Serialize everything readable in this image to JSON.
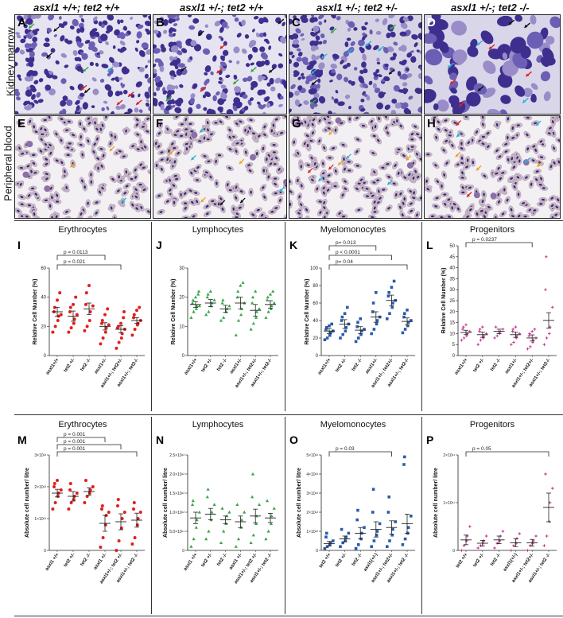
{
  "headers": [
    "asxl1 +/+; tet2 +/+",
    "asxl1 +/-; tet2 +/+",
    "asxl1 +/-; tet2 +/-",
    "asxl1 +/-; tet2 -/-"
  ],
  "row_labels": [
    "Kidney marrow",
    "Peripheral blood"
  ],
  "photo_panels": {
    "top": [
      "A",
      "B",
      "C",
      "D"
    ],
    "bottom": [
      "E",
      "F",
      "G",
      "H"
    ]
  },
  "colors": {
    "red": "#e0201c",
    "green": "#3aa64a",
    "blue": "#2a5ca8",
    "pink": "#c02a88",
    "stain_purple": "#4b3ea0",
    "rbc": "#c8b7c8"
  },
  "chart_data": [
    {
      "panel": "I",
      "type": "scatter",
      "title": "Erythrocytes",
      "color": "#e0201c",
      "marker": "circle",
      "categories": [
        "asxl1+/+",
        "tet2 +/-",
        "tet2 -/-",
        "asxl1+/-",
        "asxl1+/-; tet2+/-",
        "asxl1+/-; tet2-/-"
      ],
      "ylabel": "Relative Cell Number (%)",
      "ylim": [
        0,
        60
      ],
      "yticks": [
        0,
        20,
        40,
        60
      ],
      "means": [
        30,
        27,
        32,
        20,
        18,
        24
      ],
      "sems": [
        3,
        3.5,
        4,
        2.5,
        2.5,
        2
      ],
      "points": [
        [
          16,
          20,
          24,
          27,
          28,
          30,
          33,
          38,
          43
        ],
        [
          16,
          19,
          22,
          25,
          28,
          30,
          33,
          35,
          40
        ],
        [
          17,
          20,
          24,
          30,
          34,
          35,
          43,
          48
        ],
        [
          8,
          12,
          16,
          19,
          21,
          22,
          24,
          28,
          32
        ],
        [
          5,
          9,
          12,
          15,
          18,
          19,
          20,
          22,
          26,
          30
        ],
        [
          14,
          18,
          21,
          22,
          24,
          26,
          28,
          31,
          33
        ]
      ],
      "brackets": [
        {
          "from": 0,
          "to": 4,
          "label": "p = 0.021"
        },
        {
          "from": 0,
          "to": 3,
          "label": "p = 0.0113"
        }
      ]
    },
    {
      "panel": "J",
      "type": "scatter",
      "title": "Lymphocytes",
      "color": "#3aa64a",
      "marker": "triangle",
      "categories": [
        "asxl1+/+",
        "tet2 +/-",
        "tet2 -/-",
        "asxl1+/-",
        "asxl1+/-; tet2+/-",
        "asxl1+/-; tet2-/-"
      ],
      "ylabel": "Relative Cell Number (%)",
      "ylim": [
        0,
        30
      ],
      "yticks": [
        0,
        10,
        20,
        30
      ],
      "means": [
        17.5,
        18,
        16,
        18,
        15.5,
        17.5
      ],
      "sems": [
        1,
        1.2,
        1.2,
        2,
        2,
        1.3
      ],
      "points": [
        [
          13,
          15,
          16,
          17,
          17,
          18,
          19,
          20,
          21,
          22
        ],
        [
          14,
          15,
          17,
          18,
          19,
          20,
          21,
          22
        ],
        [
          12,
          13,
          15,
          16,
          17,
          18,
          19
        ],
        [
          7,
          12,
          14,
          16,
          18,
          20,
          22,
          24,
          25
        ],
        [
          9,
          11,
          13,
          15,
          16,
          18,
          20,
          22
        ],
        [
          13,
          15,
          16,
          17,
          18,
          19,
          20,
          21,
          22
        ]
      ],
      "brackets": []
    },
    {
      "panel": "K",
      "type": "scatter",
      "title": "Myelomonocytes",
      "color": "#2a5ca8",
      "marker": "square",
      "categories": [
        "asxl1+/+",
        "tet2 +/-",
        "tet2 -/-",
        "asxl1+/-",
        "asxl1+/-; tet2+/-",
        "asxl1+/-; tet2-/-"
      ],
      "ylabel": "Relative Cell Number (%)",
      "ylim": [
        0,
        100
      ],
      "yticks": [
        0,
        20,
        40,
        60,
        80,
        100
      ],
      "means": [
        28,
        36,
        29,
        44,
        63,
        39
      ],
      "sems": [
        3,
        5,
        4,
        6,
        6,
        4
      ],
      "points": [
        [
          18,
          20,
          23,
          26,
          28,
          30,
          32,
          34,
          36
        ],
        [
          20,
          24,
          28,
          32,
          36,
          40,
          44,
          48,
          55
        ],
        [
          16,
          20,
          24,
          28,
          30,
          33,
          38,
          42
        ],
        [
          25,
          30,
          36,
          40,
          44,
          50,
          60,
          72
        ],
        [
          42,
          48,
          55,
          60,
          63,
          68,
          72,
          78,
          85
        ],
        [
          26,
          30,
          34,
          38,
          40,
          44,
          48,
          52
        ]
      ],
      "brackets": [
        {
          "from": 0,
          "to": 5,
          "label": "p= 0.04"
        },
        {
          "from": 0,
          "to": 4,
          "label": "p < 0.0001"
        },
        {
          "from": 0,
          "to": 3,
          "label": "p= 0.013"
        }
      ]
    },
    {
      "panel": "L",
      "type": "scatter",
      "title": "Progenitors",
      "color": "#c02a88",
      "marker": "plus",
      "categories": [
        "asxl1+/+",
        "tet2 +/-",
        "tet2 -/-",
        "asxl1+/-",
        "asxl1+/-; tet2+/-",
        "asxl1+/-; tet2-/-"
      ],
      "ylabel": "Relative Cell Number (%)",
      "ylim": [
        0,
        50
      ],
      "yticks": [
        0,
        5,
        10,
        15,
        20,
        25,
        30,
        35,
        40,
        45,
        50
      ],
      "means": [
        10.5,
        9.5,
        11,
        9.5,
        8,
        16
      ],
      "sems": [
        1,
        1.2,
        1,
        1.2,
        1.4,
        3.5
      ],
      "points": [
        [
          7,
          8,
          9,
          10,
          11,
          12,
          13,
          14
        ],
        [
          5,
          7,
          8,
          9,
          10,
          11,
          12,
          13
        ],
        [
          8,
          9,
          10,
          11,
          12,
          13
        ],
        [
          5,
          6,
          8,
          9,
          10,
          11,
          12,
          13
        ],
        [
          3,
          4,
          6,
          7,
          8,
          9,
          10,
          11,
          12
        ],
        [
          5,
          8,
          10,
          13,
          22,
          30,
          45
        ]
      ],
      "brackets": [
        {
          "from": 0,
          "to": 4,
          "label": "p = 0.0237"
        }
      ]
    },
    {
      "panel": "M",
      "type": "scatter",
      "title": "Erythrocytes",
      "color": "#e0201c",
      "marker": "circle",
      "categories": [
        "asxl1 +/+",
        "tet2 +/-",
        "tet2 -/-",
        "asxl1 +/-",
        "asxl1+/-; tet2 +/-",
        "asxl1+/-; tet2 -/-"
      ],
      "ylabel": "Absolute cell number/ litre",
      "ylim": [
        0,
        3
      ],
      "yticks": [
        0,
        1,
        2,
        3
      ],
      "ytick_labels": [
        "0",
        "1×10¹³",
        "2×10¹³",
        "3×10¹³"
      ],
      "means": [
        1.8,
        1.7,
        1.85,
        0.85,
        0.9,
        0.95
      ],
      "sems": [
        0.12,
        0.15,
        0.12,
        0.25,
        0.25,
        0.22
      ],
      "points": [
        [
          1.3,
          1.5,
          1.7,
          1.8,
          1.9,
          2.0,
          2.1,
          2.2
        ],
        [
          1.3,
          1.5,
          1.6,
          1.7,
          1.8,
          1.9,
          2.1
        ],
        [
          1.5,
          1.7,
          1.8,
          1.9,
          2.0,
          2.2
        ],
        [
          0.1,
          0.4,
          0.8,
          1.1,
          1.2,
          1.3,
          1.4
        ],
        [
          0.0,
          0.3,
          0.7,
          1.0,
          1.2,
          1.4,
          1.6
        ],
        [
          0.2,
          0.4,
          0.8,
          1.0,
          1.2,
          1.3,
          1.5
        ]
      ],
      "brackets": [
        {
          "from": 0,
          "to": 5,
          "label": "p = 0.001"
        },
        {
          "from": 0,
          "to": 4,
          "label": "p = 0.001"
        },
        {
          "from": 0,
          "to": 3,
          "label": "p = 0.001"
        }
      ]
    },
    {
      "panel": "N",
      "type": "scatter",
      "title": "Lymphocytes",
      "color": "#3aa64a",
      "marker": "triangle",
      "categories": [
        "asxl1 +/+",
        "tet2 +/-",
        "tet2 -/-",
        "asxl1 +/-",
        "asxl1+/-; tet2 +/-",
        "asxl1+/-; tet2 -/-"
      ],
      "ylabel": "Absolute cell number/ litre",
      "ylim": [
        0,
        2.5
      ],
      "yticks": [
        0,
        0.5,
        1.0,
        1.5,
        2.0,
        2.5
      ],
      "ytick_labels": [
        "0",
        "5.0×10¹¹",
        "1.0×10¹²",
        "1.5×10¹²",
        "2.0×10¹²",
        "2.5×10¹²"
      ],
      "means": [
        0.85,
        0.95,
        0.8,
        0.75,
        0.9,
        0.85
      ],
      "sems": [
        0.15,
        0.15,
        0.1,
        0.15,
        0.18,
        0.12
      ],
      "points": [
        [
          0.1,
          0.3,
          0.6,
          0.8,
          1.0,
          1.2,
          1.3
        ],
        [
          0.3,
          0.5,
          0.8,
          1.0,
          1.2,
          1.4,
          1.6
        ],
        [
          0.2,
          0.5,
          0.7,
          0.9,
          1.0,
          1.1
        ],
        [
          0.1,
          0.3,
          0.6,
          0.8,
          1.0,
          1.2
        ],
        [
          0.2,
          0.4,
          0.7,
          0.9,
          1.2,
          1.4,
          2.0
        ],
        [
          0.3,
          0.5,
          0.7,
          0.9,
          1.1,
          1.3
        ]
      ],
      "brackets": []
    },
    {
      "panel": "O",
      "type": "scatter",
      "title": "Myelomonocytes",
      "color": "#2a5ca8",
      "marker": "square",
      "categories": [
        "tet2 +/+",
        "tet2 +/-",
        "tet2 -/-",
        "asxl1(+/-)",
        "asxl1+/-; tet2+/-",
        "asxl1+/-; tet2 -/-"
      ],
      "ylabel": "Absolute cell number/ litre",
      "ylim": [
        0,
        5
      ],
      "yticks": [
        0,
        1,
        2,
        3,
        4,
        5
      ],
      "ytick_labels": [
        "0",
        "1×10¹²",
        "2×10¹²",
        "3×10¹²",
        "4×10¹²",
        "5×10¹²"
      ],
      "means": [
        0.35,
        0.6,
        0.9,
        1.1,
        1.2,
        1.4
      ],
      "sems": [
        0.12,
        0.15,
        0.3,
        0.4,
        0.35,
        0.5
      ],
      "points": [
        [
          0.1,
          0.2,
          0.3,
          0.4,
          0.5,
          0.7,
          0.9
        ],
        [
          0.2,
          0.4,
          0.5,
          0.7,
          0.9,
          1.1
        ],
        [
          0.1,
          0.3,
          0.6,
          0.9,
          1.2,
          1.6,
          2.1
        ],
        [
          0.2,
          0.5,
          0.8,
          1.0,
          1.4,
          2.0,
          3.2
        ],
        [
          0.2,
          0.5,
          0.8,
          1.1,
          1.5,
          2.0,
          2.8
        ],
        [
          0.3,
          0.6,
          0.9,
          1.2,
          1.8,
          4.5,
          4.9
        ]
      ],
      "brackets": [
        {
          "from": 0,
          "to": 4,
          "label": "p = 0.03"
        }
      ]
    },
    {
      "panel": "P",
      "type": "scatter",
      "title": "Progenitors",
      "color": "#c02a88",
      "marker": "plus",
      "categories": [
        "tet2 +/+",
        "tet2 +/-",
        "tet2 -/-",
        "asxl1(+/-)",
        "asxl1+/-; tet2+/-",
        "asxl1+/-; tet2 -/-"
      ],
      "ylabel": "Absolute cell number/ litre",
      "ylim": [
        0,
        2
      ],
      "yticks": [
        0,
        1,
        2
      ],
      "ytick_labels": [
        "0",
        "1×10¹¹",
        "2×10¹¹"
      ],
      "means": [
        0.22,
        0.15,
        0.22,
        0.16,
        0.16,
        0.9
      ],
      "sems": [
        0.1,
        0.06,
        0.08,
        0.08,
        0.07,
        0.3
      ],
      "points": [
        [
          0.0,
          0.1,
          0.2,
          0.3,
          0.5
        ],
        [
          0.05,
          0.1,
          0.15,
          0.2,
          0.3
        ],
        [
          0.05,
          0.15,
          0.2,
          0.3,
          0.4
        ],
        [
          0.0,
          0.1,
          0.15,
          0.25,
          0.35
        ],
        [
          0.0,
          0.1,
          0.15,
          0.2,
          0.3
        ],
        [
          0.1,
          0.3,
          0.6,
          1.0,
          1.3,
          1.6
        ]
      ],
      "brackets": [
        {
          "from": 0,
          "to": 5,
          "label": "p = 0.05"
        }
      ]
    }
  ]
}
